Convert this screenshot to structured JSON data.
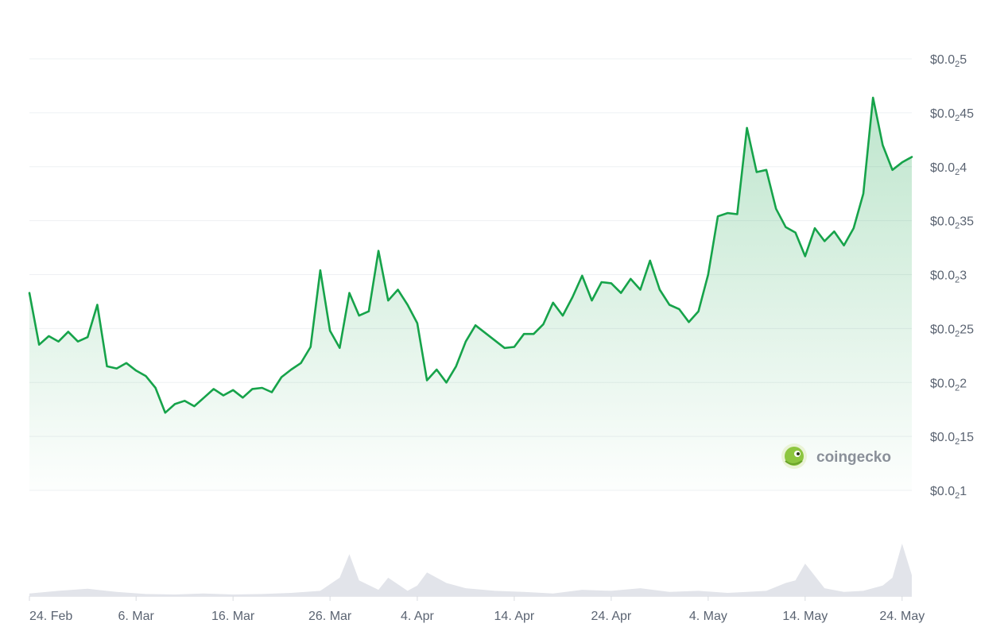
{
  "chart_data": {
    "type": "area",
    "title": "",
    "xlabel": "",
    "ylabel": "",
    "ylim": [
      0.001,
      0.0051
    ],
    "grid": true,
    "colors": {
      "line": "#16a34a",
      "fill_top": "#16a34a",
      "volume": "#e2e4ea",
      "grid": "#eef0f3",
      "tick_text": "#5b6472"
    },
    "y_ticks": [
      {
        "value": 0.005,
        "prefix": "$0.0",
        "sub": "2",
        "suffix": "5"
      },
      {
        "value": 0.0045,
        "prefix": "$0.0",
        "sub": "2",
        "suffix": "45"
      },
      {
        "value": 0.004,
        "prefix": "$0.0",
        "sub": "2",
        "suffix": "4"
      },
      {
        "value": 0.0035,
        "prefix": "$0.0",
        "sub": "2",
        "suffix": "35"
      },
      {
        "value": 0.003,
        "prefix": "$0.0",
        "sub": "2",
        "suffix": "3"
      },
      {
        "value": 0.0025,
        "prefix": "$0.0",
        "sub": "2",
        "suffix": "25"
      },
      {
        "value": 0.002,
        "prefix": "$0.0",
        "sub": "2",
        "suffix": "2"
      },
      {
        "value": 0.0015,
        "prefix": "$0.0",
        "sub": "2",
        "suffix": "15"
      },
      {
        "value": 0.001,
        "prefix": "$0.0",
        "sub": "2",
        "suffix": "1"
      }
    ],
    "x_ticks": [
      "24. Feb",
      "6. Mar",
      "16. Mar",
      "26. Mar",
      "4. Apr",
      "14. Apr",
      "24. Apr",
      "4. May",
      "14. May",
      "24. May"
    ],
    "series": [
      {
        "type": "line",
        "x": [
          "2024-02-24",
          "2024-02-25",
          "2024-02-26",
          "2024-02-27",
          "2024-02-28",
          "2024-02-29",
          "2024-03-01",
          "2024-03-02",
          "2024-03-03",
          "2024-03-04",
          "2024-03-05",
          "2024-03-06",
          "2024-03-07",
          "2024-03-08",
          "2024-03-09",
          "2024-03-10",
          "2024-03-11",
          "2024-03-12",
          "2024-03-13",
          "2024-03-14",
          "2024-03-15",
          "2024-03-16",
          "2024-03-17",
          "2024-03-18",
          "2024-03-19",
          "2024-03-20",
          "2024-03-21",
          "2024-03-22",
          "2024-03-23",
          "2024-03-24",
          "2024-03-25",
          "2024-03-26",
          "2024-03-27",
          "2024-03-28",
          "2024-03-29",
          "2024-03-30",
          "2024-03-31",
          "2024-04-01",
          "2024-04-02",
          "2024-04-03",
          "2024-04-04",
          "2024-04-05",
          "2024-04-06",
          "2024-04-07",
          "2024-04-08",
          "2024-04-09",
          "2024-04-10",
          "2024-04-11",
          "2024-04-12",
          "2024-04-13",
          "2024-04-14",
          "2024-04-15",
          "2024-04-16",
          "2024-04-17",
          "2024-04-18",
          "2024-04-19",
          "2024-04-20",
          "2024-04-21",
          "2024-04-22",
          "2024-04-23",
          "2024-04-24",
          "2024-04-25",
          "2024-04-26",
          "2024-04-27",
          "2024-04-28",
          "2024-04-29",
          "2024-04-30",
          "2024-05-01",
          "2024-05-02",
          "2024-05-03",
          "2024-05-04",
          "2024-05-05",
          "2024-05-06",
          "2024-05-07",
          "2024-05-08",
          "2024-05-09",
          "2024-05-10",
          "2024-05-11",
          "2024-05-12",
          "2024-05-13",
          "2024-05-14",
          "2024-05-15",
          "2024-05-16",
          "2024-05-17",
          "2024-05-18",
          "2024-05-19",
          "2024-05-20",
          "2024-05-21",
          "2024-05-22",
          "2024-05-23",
          "2024-05-24",
          "2024-05-25"
        ],
        "values": [
          0.00283,
          0.00235,
          0.00243,
          0.00238,
          0.00247,
          0.00238,
          0.00242,
          0.00272,
          0.00215,
          0.00213,
          0.00218,
          0.00211,
          0.00206,
          0.00195,
          0.00172,
          0.0018,
          0.00183,
          0.00178,
          0.00186,
          0.00194,
          0.00188,
          0.00193,
          0.00186,
          0.00194,
          0.00195,
          0.00191,
          0.00205,
          0.00212,
          0.00218,
          0.00233,
          0.00304,
          0.00248,
          0.00232,
          0.00283,
          0.00262,
          0.00266,
          0.00322,
          0.00276,
          0.00286,
          0.00272,
          0.00255,
          0.00202,
          0.00212,
          0.002,
          0.00215,
          0.00238,
          0.00253,
          0.00246,
          0.00239,
          0.00232,
          0.00233,
          0.00245,
          0.00245,
          0.00254,
          0.00274,
          0.00262,
          0.00279,
          0.00299,
          0.00276,
          0.00293,
          0.00292,
          0.00283,
          0.00296,
          0.00286,
          0.00313,
          0.00286,
          0.00272,
          0.00268,
          0.00256,
          0.00266,
          0.003,
          0.00354,
          0.00357,
          0.00356,
          0.00436,
          0.00395,
          0.00397,
          0.00361,
          0.00344,
          0.00339,
          0.00317,
          0.00343,
          0.00331,
          0.0034,
          0.00327,
          0.00343,
          0.00375,
          0.00464,
          0.0042,
          0.00397,
          0.00404,
          0.00409
        ]
      }
    ],
    "volume": {
      "x": [
        "2024-02-24",
        "2024-02-27",
        "2024-03-01",
        "2024-03-04",
        "2024-03-07",
        "2024-03-10",
        "2024-03-13",
        "2024-03-16",
        "2024-03-19",
        "2024-03-22",
        "2024-03-25",
        "2024-03-27",
        "2024-03-28",
        "2024-03-29",
        "2024-03-31",
        "2024-04-01",
        "2024-04-03",
        "2024-04-04",
        "2024-04-05",
        "2024-04-07",
        "2024-04-09",
        "2024-04-12",
        "2024-04-15",
        "2024-04-18",
        "2024-04-21",
        "2024-04-24",
        "2024-04-27",
        "2024-04-30",
        "2024-05-03",
        "2024-05-06",
        "2024-05-08",
        "2024-05-10",
        "2024-05-12",
        "2024-05-13",
        "2024-05-14",
        "2024-05-16",
        "2024-05-18",
        "2024-05-20",
        "2024-05-22",
        "2024-05-23",
        "2024-05-24",
        "2024-05-25"
      ],
      "values": [
        0.05,
        0.1,
        0.14,
        0.08,
        0.04,
        0.03,
        0.05,
        0.03,
        0.04,
        0.06,
        0.1,
        0.35,
        0.8,
        0.3,
        0.12,
        0.35,
        0.1,
        0.2,
        0.45,
        0.25,
        0.15,
        0.1,
        0.08,
        0.05,
        0.12,
        0.1,
        0.15,
        0.08,
        0.1,
        0.06,
        0.08,
        0.1,
        0.25,
        0.3,
        0.62,
        0.15,
        0.08,
        0.1,
        0.2,
        0.35,
        1.0,
        0.4
      ]
    }
  },
  "watermark": {
    "text": "coingecko",
    "icon": "coingecko-gecko-logo",
    "icon_color": "#8dc63f"
  }
}
